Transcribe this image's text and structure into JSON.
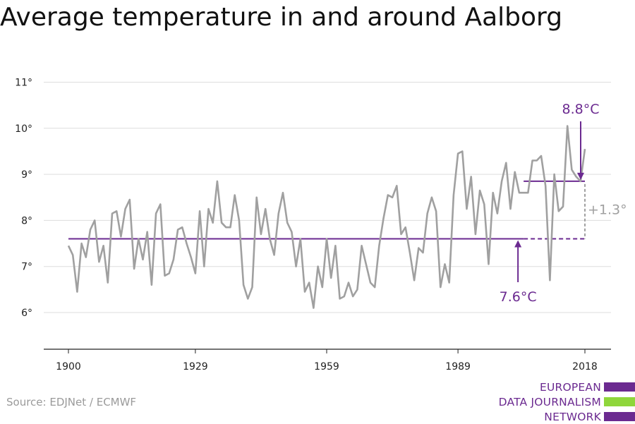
{
  "title": "Average temperature in and around Aalborg",
  "source": "Source: EDJNet / ECMWF",
  "logo": {
    "lines": [
      "EUROPEAN",
      "DATA JOURNALISM",
      "NETWORK"
    ],
    "colors": [
      "#6b2a90",
      "#8fd63b",
      "#6b2a90"
    ]
  },
  "chart_data": {
    "type": "line",
    "title": "Average temperature in and around Aalborg",
    "xlabel": "",
    "ylabel": "",
    "xlim": [
      1900,
      2018
    ],
    "ylim": [
      5.2,
      11.2
    ],
    "x_ticks": [
      1900,
      1929,
      1959,
      1989,
      2018
    ],
    "y_ticks": [
      6,
      7,
      8,
      9,
      10,
      11
    ],
    "y_tick_labels": [
      "6°",
      "7°",
      "8°",
      "9°",
      "10°",
      "11°"
    ],
    "grid": "horizontal",
    "series": [
      {
        "name": "",
        "color": "#a0a0a0",
        "x_start": 1900,
        "values": [
          7.45,
          7.25,
          6.45,
          7.5,
          7.2,
          7.8,
          8.0,
          7.1,
          7.45,
          6.65,
          8.15,
          8.2,
          7.65,
          8.25,
          8.45,
          6.95,
          7.6,
          7.15,
          7.75,
          6.6,
          8.15,
          8.35,
          6.8,
          6.85,
          7.15,
          7.8,
          7.85,
          7.5,
          7.2,
          6.85,
          8.2,
          7.0,
          8.25,
          7.95,
          8.85,
          7.95,
          7.85,
          7.85,
          8.55,
          8.0,
          6.6,
          6.3,
          6.55,
          8.5,
          7.7,
          8.25,
          7.6,
          7.25,
          8.15,
          8.6,
          7.95,
          7.75,
          7.0,
          7.6,
          6.45,
          6.65,
          6.1,
          7.0,
          6.55,
          7.6,
          6.75,
          7.45,
          6.3,
          6.35,
          6.65,
          6.35,
          6.5,
          7.45,
          7.05,
          6.65,
          6.55,
          7.45,
          8.05,
          8.55,
          8.5,
          8.75,
          7.7,
          7.85,
          7.3,
          6.7,
          7.4,
          7.3,
          8.15,
          8.5,
          8.2,
          6.55,
          7.05,
          6.65,
          8.55,
          9.45,
          9.5,
          8.25,
          8.95,
          7.7,
          8.65,
          8.35,
          7.05,
          8.6,
          8.15,
          8.85,
          9.25,
          8.25,
          9.05,
          8.6,
          8.6,
          8.6,
          9.3,
          9.3,
          9.4,
          8.75,
          6.7,
          9.0,
          8.2,
          8.3,
          10.05,
          9.1,
          8.95,
          8.85,
          9.55
        ]
      }
    ],
    "reference_lines": [
      {
        "label": "7.6°C",
        "value": 7.6,
        "x_from": 1900,
        "x_to": 2004,
        "dashed_to": 2018,
        "color": "#6b2a90"
      },
      {
        "label": "8.8°C",
        "value": 8.85,
        "x_from": 2004,
        "x_to": 2018,
        "color": "#6b2a90"
      }
    ],
    "difference_label": "+1.3°"
  }
}
